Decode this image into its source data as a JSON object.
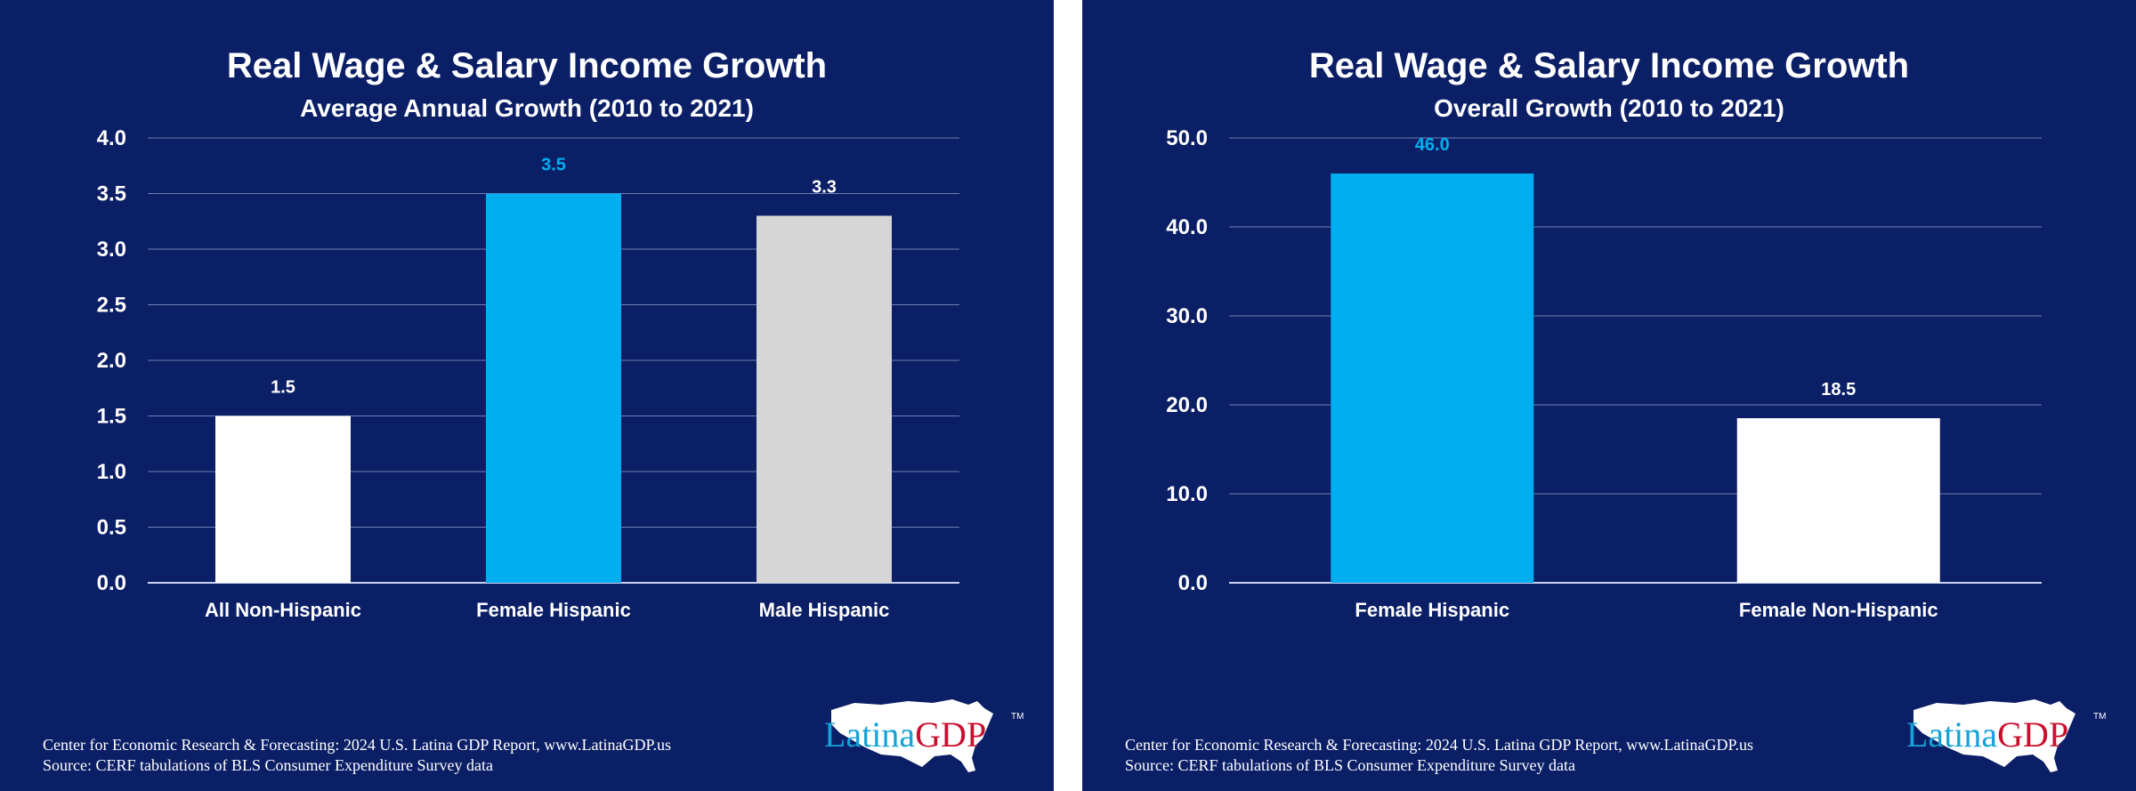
{
  "colors": {
    "background": "#0b1f66",
    "highlight": "#00aeef",
    "white": "#ffffff",
    "gray": "#d6d6d6",
    "grid": "#6e7fb3"
  },
  "footer": {
    "line1": "Center for Economic Research & Forecasting: 2024 U.S. Latina GDP Report, www.LatinaGDP.us",
    "line2": "Source: CERF tabulations of BLS Consumer Expenditure Survey data"
  },
  "logo": {
    "latina": "Latina",
    "gdp": "GDP",
    "tm": "TM",
    "map_icon": "usa-map-icon"
  },
  "chart_data": [
    {
      "type": "bar",
      "title": "Real Wage & Salary Income Growth",
      "subtitle": "Average Annual Growth (2010 to 2021)",
      "categories": [
        "All Non-Hispanic",
        "Female Hispanic",
        "Male Hispanic"
      ],
      "values": [
        1.5,
        3.5,
        3.3
      ],
      "data_labels": [
        "1.5",
        "3.5",
        "3.3"
      ],
      "bar_colors": [
        "#ffffff",
        "#00aeef",
        "#d6d6d6"
      ],
      "label_colors": [
        "#ffffff",
        "#00aeef",
        "#ffffff"
      ],
      "ylim": [
        0,
        4
      ],
      "yticks": [
        "0.0",
        "0.5",
        "1.0",
        "1.5",
        "2.0",
        "2.5",
        "3.0",
        "3.5",
        "4.0"
      ],
      "xlabel": "",
      "ylabel": "",
      "grid": true
    },
    {
      "type": "bar",
      "title": "Real Wage & Salary Income Growth",
      "subtitle": "Overall Growth (2010 to 2021)",
      "categories": [
        "Female Hispanic",
        "Female Non-Hispanic"
      ],
      "values": [
        46.0,
        18.5
      ],
      "data_labels": [
        "46.0",
        "18.5"
      ],
      "bar_colors": [
        "#00aeef",
        "#ffffff"
      ],
      "label_colors": [
        "#00aeef",
        "#ffffff"
      ],
      "ylim": [
        0,
        50
      ],
      "yticks": [
        "0.0",
        "10.0",
        "20.0",
        "30.0",
        "40.0",
        "50.0"
      ],
      "xlabel": "",
      "ylabel": "",
      "grid": true
    }
  ]
}
